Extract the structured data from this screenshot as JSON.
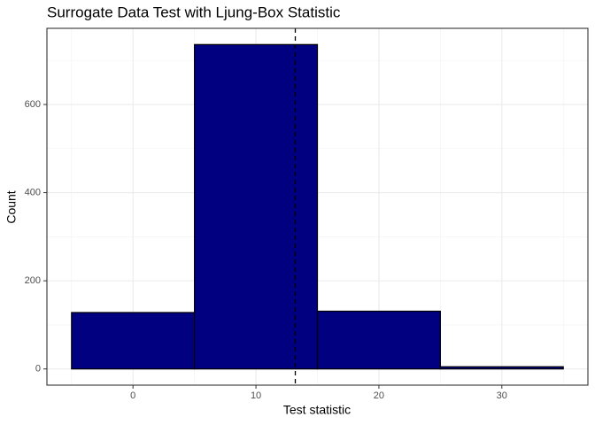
{
  "chart_data": {
    "type": "histogram",
    "title": "Surrogate Data Test with Ljung-Box Statistic",
    "xlabel": "Test statistic",
    "ylabel": "Count",
    "bins": [
      -5,
      5,
      15,
      25,
      35
    ],
    "counts": [
      128,
      736,
      131,
      5
    ],
    "color": "#000080",
    "edgecolor": "#000000",
    "vline": 13.2,
    "vline_color": "#000000",
    "xlim": [
      -7,
      37
    ],
    "ylim": [
      -36.8,
      772.8
    ],
    "xticks": [
      0,
      10,
      20,
      30
    ],
    "yticks": [
      0,
      200,
      400,
      600
    ],
    "x_minor_grid": [
      -5,
      5,
      15,
      25,
      35
    ],
    "y_minor_grid": [
      100,
      300,
      500,
      700
    ],
    "grid": true
  }
}
